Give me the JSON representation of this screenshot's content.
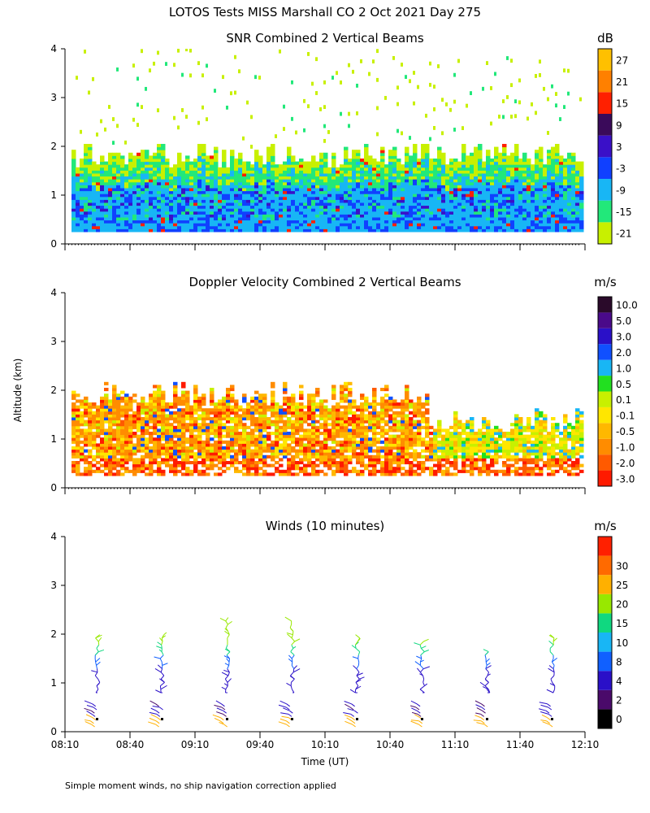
{
  "page": {
    "title": "LOTOS Tests MISS Marshall CO    2 Oct 2021 Day 275",
    "y_axis_label": "Altitude (km)",
    "x_axis_label": "Time (UT)",
    "footnote": "Simple moment winds, no ship navigation correction applied"
  },
  "chart_data": [
    {
      "type": "heatmap",
      "title": "SNR Combined 2 Vertical Beams",
      "xlabel": "Time (UT)",
      "ylabel": "Altitude (km)",
      "xlim": [
        0,
        240
      ],
      "ylim": [
        0,
        4
      ],
      "x_ticks": [
        0,
        30,
        60,
        90,
        120,
        150,
        180,
        210,
        240
      ],
      "x_tick_labels": [],
      "y_ticks": [
        0,
        1,
        2,
        3,
        4
      ],
      "y_tick_labels": [
        "0",
        "1",
        "2",
        "3",
        "4"
      ],
      "colorbar": {
        "unit": "dB",
        "bins": [
          {
            "label": "-21",
            "color": "#c8f000"
          },
          {
            "label": "-15",
            "color": "#22e87a"
          },
          {
            "label": "-9",
            "color": "#18b6f5"
          },
          {
            "label": "-3",
            "color": "#1040ff"
          },
          {
            "label": "3",
            "color": "#3a10c8"
          },
          {
            "label": "9",
            "color": "#3a0a5a"
          },
          {
            "label": "15",
            "color": "#ff2000"
          },
          {
            "label": "21",
            "color": "#ff8000"
          },
          {
            "label": "27",
            "color": "#ffc000"
          }
        ]
      },
      "profile_top_km": 1.8,
      "profile_base_km": 0.25,
      "time_start_min": 3,
      "time_end_min": 238
    },
    {
      "type": "heatmap",
      "title": "Doppler Velocity Combined 2 Vertical Beams",
      "xlabel": "Time (UT)",
      "ylabel": "Altitude (km)",
      "xlim": [
        0,
        240
      ],
      "ylim": [
        0,
        4
      ],
      "x_ticks": [
        0,
        30,
        60,
        90,
        120,
        150,
        180,
        210,
        240
      ],
      "x_tick_labels": [],
      "y_ticks": [
        0,
        1,
        2,
        3,
        4
      ],
      "y_tick_labels": [
        "0",
        "1",
        "2",
        "3",
        "4"
      ],
      "colorbar": {
        "unit": "m/s",
        "bins": [
          {
            "label": "-3.0",
            "color": "#ff1a00"
          },
          {
            "label": "-2.0",
            "color": "#ff5a00"
          },
          {
            "label": "-1.0",
            "color": "#ff8c00"
          },
          {
            "label": "-0.5",
            "color": "#ffb800"
          },
          {
            "label": "-0.1",
            "color": "#ffe600"
          },
          {
            "label": "0.1",
            "color": "#c8f000"
          },
          {
            "label": "0.5",
            "color": "#22e020"
          },
          {
            "label": "1.0",
            "color": "#18b6f5"
          },
          {
            "label": "2.0",
            "color": "#1050ff"
          },
          {
            "label": "3.0",
            "color": "#2a10c8"
          },
          {
            "label": "5.0",
            "color": "#4a0a8a"
          },
          {
            "label": "10.0",
            "color": "#2a0a2a"
          }
        ]
      },
      "profile_top_km": 1.9,
      "profile_base_km": 0.25,
      "time_start_min": 3,
      "time_end_min": 238
    },
    {
      "type": "scatter",
      "title": "Winds (10 minutes)",
      "xlabel": "Time (UT)",
      "ylabel": "Altitude (km)",
      "xlim": [
        0,
        240
      ],
      "ylim": [
        0,
        4
      ],
      "x_ticks": [
        0,
        30,
        60,
        90,
        120,
        150,
        180,
        210,
        240
      ],
      "x_tick_labels": [
        "08:10",
        "08:40",
        "09:10",
        "09:40",
        "10:10",
        "10:40",
        "11:10",
        "11:40",
        "12:10"
      ],
      "y_ticks": [
        0,
        1,
        2,
        3,
        4
      ],
      "y_tick_labels": [
        "0",
        "1",
        "2",
        "3",
        "4"
      ],
      "colorbar": {
        "unit": "m/s",
        "bins": [
          {
            "label": "0",
            "color": "#000000"
          },
          {
            "label": "2",
            "color": "#4a0a6a"
          },
          {
            "label": "4",
            "color": "#2a10c8"
          },
          {
            "label": "8",
            "color": "#1060ff"
          },
          {
            "label": "10",
            "color": "#18b6f5"
          },
          {
            "label": "15",
            "color": "#10d880"
          },
          {
            "label": "20",
            "color": "#98e800"
          },
          {
            "label": "25",
            "color": "#ffb000"
          },
          {
            "label": "30",
            "color": "#ff6a00"
          },
          {
            "label": "",
            "color": "#ff2000"
          }
        ]
      },
      "profiles": [
        {
          "time_min": 15,
          "top_km": 2.0
        },
        {
          "time_min": 45,
          "top_km": 2.0
        },
        {
          "time_min": 75,
          "top_km": 2.4
        },
        {
          "time_min": 105,
          "top_km": 2.3
        },
        {
          "time_min": 135,
          "top_km": 2.0
        },
        {
          "time_min": 165,
          "top_km": 1.9
        },
        {
          "time_min": 195,
          "top_km": 1.7
        },
        {
          "time_min": 225,
          "top_km": 2.0
        }
      ]
    }
  ]
}
